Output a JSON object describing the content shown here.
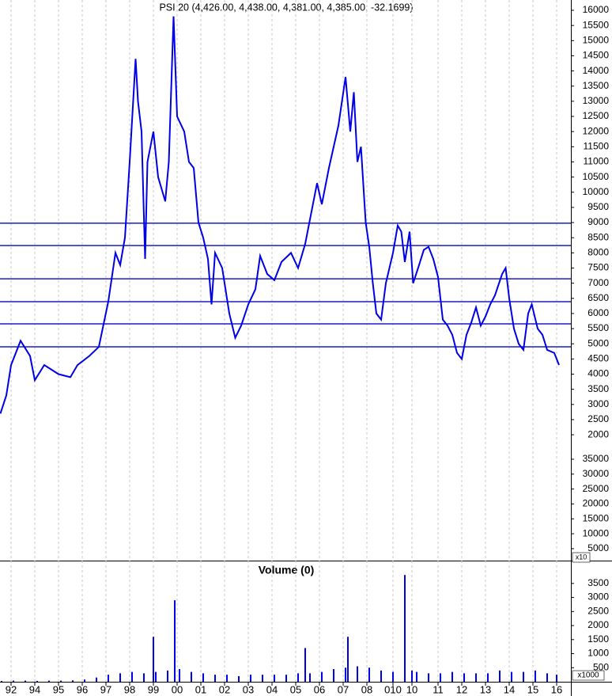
{
  "chart_data": [
    {
      "type": "line",
      "title": "PSI 20 (4,426.00, 4,438.00, 4,381.00, 4,385.00, -32.1699)",
      "color": "#0000e6",
      "x": [
        1993.05,
        1993.3,
        1993.5,
        1993.9,
        1994.3,
        1994.5,
        1994.9,
        1995.5,
        1996.0,
        1996.3,
        1996.8,
        1997.2,
        1997.6,
        1997.9,
        1998.1,
        1998.3,
        1998.5,
        1998.75,
        1998.85,
        1999.0,
        1999.15,
        1999.25,
        1999.5,
        1999.7,
        2000.0,
        2000.15,
        2000.35,
        2000.5,
        2000.8,
        2001.0,
        2001.2,
        2001.4,
        2001.6,
        2001.8,
        2001.95,
        2002.1,
        2002.4,
        2002.7,
        2002.95,
        2003.2,
        2003.5,
        2003.8,
        2004.0,
        2004.3,
        2004.6,
        2004.9,
        2005.3,
        2005.6,
        2005.9,
        2006.2,
        2006.4,
        2006.6,
        2006.9,
        2007.3,
        2007.6,
        2007.8,
        2007.95,
        2008.1,
        2008.25,
        2008.45,
        2008.6,
        2008.75,
        2008.9,
        2009.1,
        2009.3,
        2009.6,
        2009.8,
        2009.95,
        2010.1,
        2010.3,
        2010.45,
        2010.7,
        2010.9,
        2011.1,
        2011.3,
        2011.5,
        2011.7,
        2011.9,
        2012.1,
        2012.3,
        2012.5,
        2012.7,
        2012.9,
        2013.1,
        2013.3,
        2013.5,
        2013.7,
        2013.9,
        2014.2,
        2014.35,
        2014.5,
        2014.7,
        2014.9,
        2015.1,
        2015.3,
        2015.45,
        2015.7,
        2015.9,
        2016.1,
        2016.4,
        2016.6
      ],
      "values": [
        2700,
        3300,
        4300,
        5100,
        4600,
        3800,
        4300,
        4000,
        3900,
        4300,
        4600,
        4900,
        6400,
        8000,
        7600,
        8500,
        11000,
        14400,
        13000,
        12000,
        7800,
        11000,
        12000,
        10500,
        9700,
        11000,
        15800,
        12500,
        12000,
        11000,
        10800,
        9000,
        8500,
        7800,
        6300,
        8000,
        7500,
        6000,
        5200,
        5600,
        6300,
        6800,
        7900,
        7300,
        7100,
        7700,
        8000,
        7500,
        8300,
        9500,
        10300,
        9600,
        10800,
        12200,
        13800,
        12000,
        13300,
        11000,
        11500,
        9000,
        8200,
        7000,
        6000,
        5800,
        7000,
        8000,
        8900,
        8700,
        7700,
        8700,
        7000,
        7600,
        8100,
        8200,
        7800,
        7200,
        5800,
        5600,
        5300,
        4700,
        4500,
        5300,
        5700,
        6200,
        5600,
        5900,
        6300,
        6600,
        7300,
        7500,
        6500,
        5500,
        5000,
        4800,
        6000,
        6300,
        5500,
        5300,
        4800,
        4700,
        4300
      ],
      "xlim": [
        1993.033,
        2017.1
      ],
      "ylim": [
        -2150,
        16340
      ],
      "yticks": [
        2000,
        2500,
        3000,
        3500,
        4000,
        4500,
        5000,
        5500,
        6000,
        6500,
        7000,
        7500,
        8000,
        8500,
        9000,
        9500,
        10000,
        10500,
        11000,
        11500,
        12000,
        12500,
        13000,
        13500,
        14000,
        14500,
        15000,
        15500,
        16000
      ],
      "y2lim": [
        1000,
        189000
      ],
      "y2ticks": [
        5000,
        10000,
        15000,
        20000,
        25000,
        30000,
        35000
      ],
      "y2_unit": "x10",
      "hlines": [
        8980,
        8240,
        7145,
        6390,
        5660,
        4900
      ],
      "hline_color": "#1c1cc8"
    },
    {
      "type": "bar",
      "title": "Volume (0)",
      "color": "#0000e6",
      "x": [
        1992.6,
        1993.1,
        1993.6,
        1994.1,
        1994.6,
        1995.1,
        1995.6,
        1996.1,
        1996.6,
        1997.1,
        1997.6,
        1998.1,
        1998.6,
        1999.1,
        1999.5,
        1999.6,
        2000.1,
        2000.4,
        2000.6,
        2001.1,
        2001.6,
        2002.1,
        2002.6,
        2003.1,
        2003.6,
        2004.1,
        2004.6,
        2005.1,
        2005.6,
        2005.9,
        2006.1,
        2006.6,
        2007.1,
        2007.6,
        2007.7,
        2008.1,
        2008.6,
        2009.1,
        2009.6,
        2010.1,
        2010.4,
        2010.6,
        2011.1,
        2011.6,
        2012.1,
        2012.6,
        2013.1,
        2013.6,
        2014.1,
        2014.6,
        2015.1,
        2015.6,
        2016.1,
        2016.5
      ],
      "values": [
        20,
        30,
        40,
        40,
        30,
        40,
        40,
        50,
        80,
        150,
        250,
        300,
        350,
        300,
        1600,
        350,
        400,
        2900,
        450,
        350,
        300,
        250,
        250,
        200,
        250,
        250,
        250,
        250,
        300,
        1200,
        300,
        350,
        450,
        500,
        1600,
        550,
        500,
        400,
        350,
        3800,
        400,
        350,
        300,
        300,
        350,
        300,
        300,
        300,
        400,
        350,
        350,
        400,
        300,
        250
      ],
      "xlim": [
        1993.033,
        2017.1
      ],
      "ylim": [
        0,
        4200
      ],
      "yticks": [
        500,
        1000,
        1500,
        2000,
        2500,
        3000,
        3500
      ],
      "unit": "x1000",
      "xticks": [
        {
          "value": 1993.5,
          "label": "92"
        },
        {
          "value": 1994.5,
          "label": "94"
        },
        {
          "value": 1995.5,
          "label": "95"
        },
        {
          "value": 1996.5,
          "label": "96"
        },
        {
          "value": 1997.5,
          "label": "97"
        },
        {
          "value": 1998.5,
          "label": "98"
        },
        {
          "value": 1999.5,
          "label": "99"
        },
        {
          "value": 2000.5,
          "label": "00"
        },
        {
          "value": 2001.5,
          "label": "01"
        },
        {
          "value": 2002.5,
          "label": "02"
        },
        {
          "value": 2003.5,
          "label": "03"
        },
        {
          "value": 2004.5,
          "label": "04"
        },
        {
          "value": 2005.5,
          "label": "05"
        },
        {
          "value": 2006.5,
          "label": "06"
        },
        {
          "value": 2007.5,
          "label": "07"
        },
        {
          "value": 2008.5,
          "label": "08"
        },
        {
          "value": 2009.6,
          "label": "010"
        },
        {
          "value": 2010.4,
          "label": "10"
        },
        {
          "value": 2011.5,
          "label": "11"
        },
        {
          "value": 2012.5,
          "label": "12"
        },
        {
          "value": 2013.5,
          "label": "13"
        },
        {
          "value": 2014.5,
          "label": "14"
        },
        {
          "value": 2015.5,
          "label": "15"
        },
        {
          "value": 2016.5,
          "label": "16"
        }
      ]
    }
  ]
}
